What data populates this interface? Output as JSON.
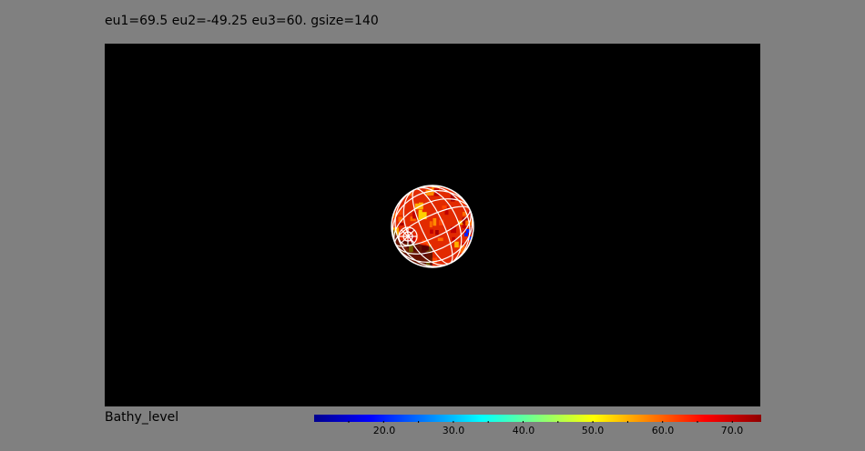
{
  "plot": {
    "title": "eu1=69.5 eu2=-49.25 eu3=60. gsize=140",
    "variable_label": "Bathy_level"
  },
  "colorbar": {
    "labels": [
      "20.0",
      "30.0",
      "40.0",
      "50.0",
      "60.0",
      "70.0"
    ],
    "colors": [
      "#00008f",
      "#0000ff",
      "#007fff",
      "#00ffff",
      "#7fff7f",
      "#ffff00",
      "#ff7f00",
      "#ff0000",
      "#8f0000"
    ]
  },
  "colors": {
    "background": "#808080",
    "viewport": "#000000",
    "grid": "#ffffff"
  }
}
